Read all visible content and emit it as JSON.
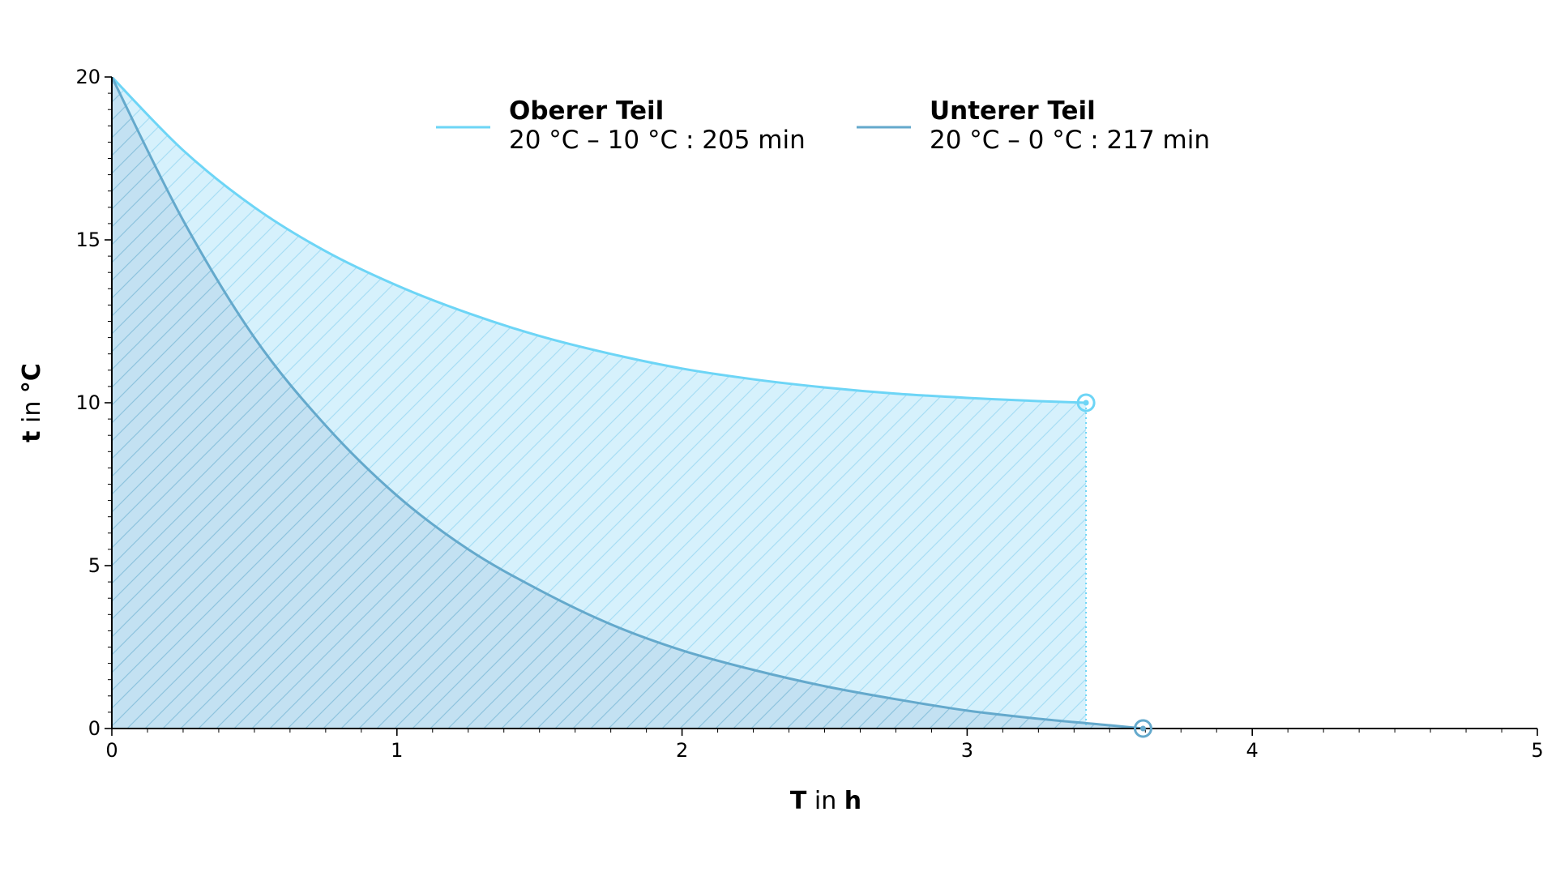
{
  "chart_data": {
    "type": "area",
    "xlim": [
      0,
      5
    ],
    "ylim": [
      0,
      20
    ],
    "x_ticks": [
      0,
      1,
      2,
      3,
      4,
      5
    ],
    "y_ticks": [
      0,
      5,
      10,
      15,
      20
    ],
    "x_tick_labels": [
      "0",
      "1",
      "2",
      "3",
      "4",
      "5"
    ],
    "y_tick_labels": [
      "0",
      "5",
      "10",
      "15",
      "20"
    ],
    "xlabel": {
      "symbol": "T",
      "mid": " in ",
      "unit": "h"
    },
    "ylabel": {
      "symbol": "t",
      "mid": " in ",
      "unit": "°C"
    },
    "grid": false,
    "legend_position": "top-center",
    "series": [
      {
        "name": "Oberer Teil",
        "legend_detail": "20 °C – 10 °C : 205 min",
        "color": "#6dd5f6",
        "fill_color": "#d6f1fc",
        "hatch_color": "#a8def4",
        "x": [
          0,
          0.25,
          0.5,
          0.75,
          1.0,
          1.25,
          1.5,
          1.75,
          2.0,
          2.25,
          2.5,
          2.75,
          3.0,
          3.25,
          3.417
        ],
        "y": [
          20,
          17.75,
          16.0,
          14.65,
          13.6,
          12.75,
          12.05,
          11.5,
          11.05,
          10.72,
          10.47,
          10.28,
          10.15,
          10.05,
          10.0
        ],
        "end_point": {
          "x": 3.417,
          "y": 10
        }
      },
      {
        "name": "Unterer Teil",
        "legend_detail": "20 °C – 0 °C : 217 min",
        "color": "#64a9cc",
        "fill_color": "#c3e1f2",
        "hatch_color": "#8ec4de",
        "x": [
          0,
          0.25,
          0.5,
          0.75,
          1.0,
          1.25,
          1.5,
          1.75,
          2.0,
          2.25,
          2.5,
          2.75,
          3.0,
          3.25,
          3.5,
          3.617
        ],
        "y": [
          20,
          15.6,
          12.0,
          9.3,
          7.15,
          5.5,
          4.25,
          3.2,
          2.4,
          1.8,
          1.3,
          0.9,
          0.55,
          0.3,
          0.1,
          0.0
        ],
        "end_point": {
          "x": 3.617,
          "y": 0
        }
      }
    ]
  }
}
